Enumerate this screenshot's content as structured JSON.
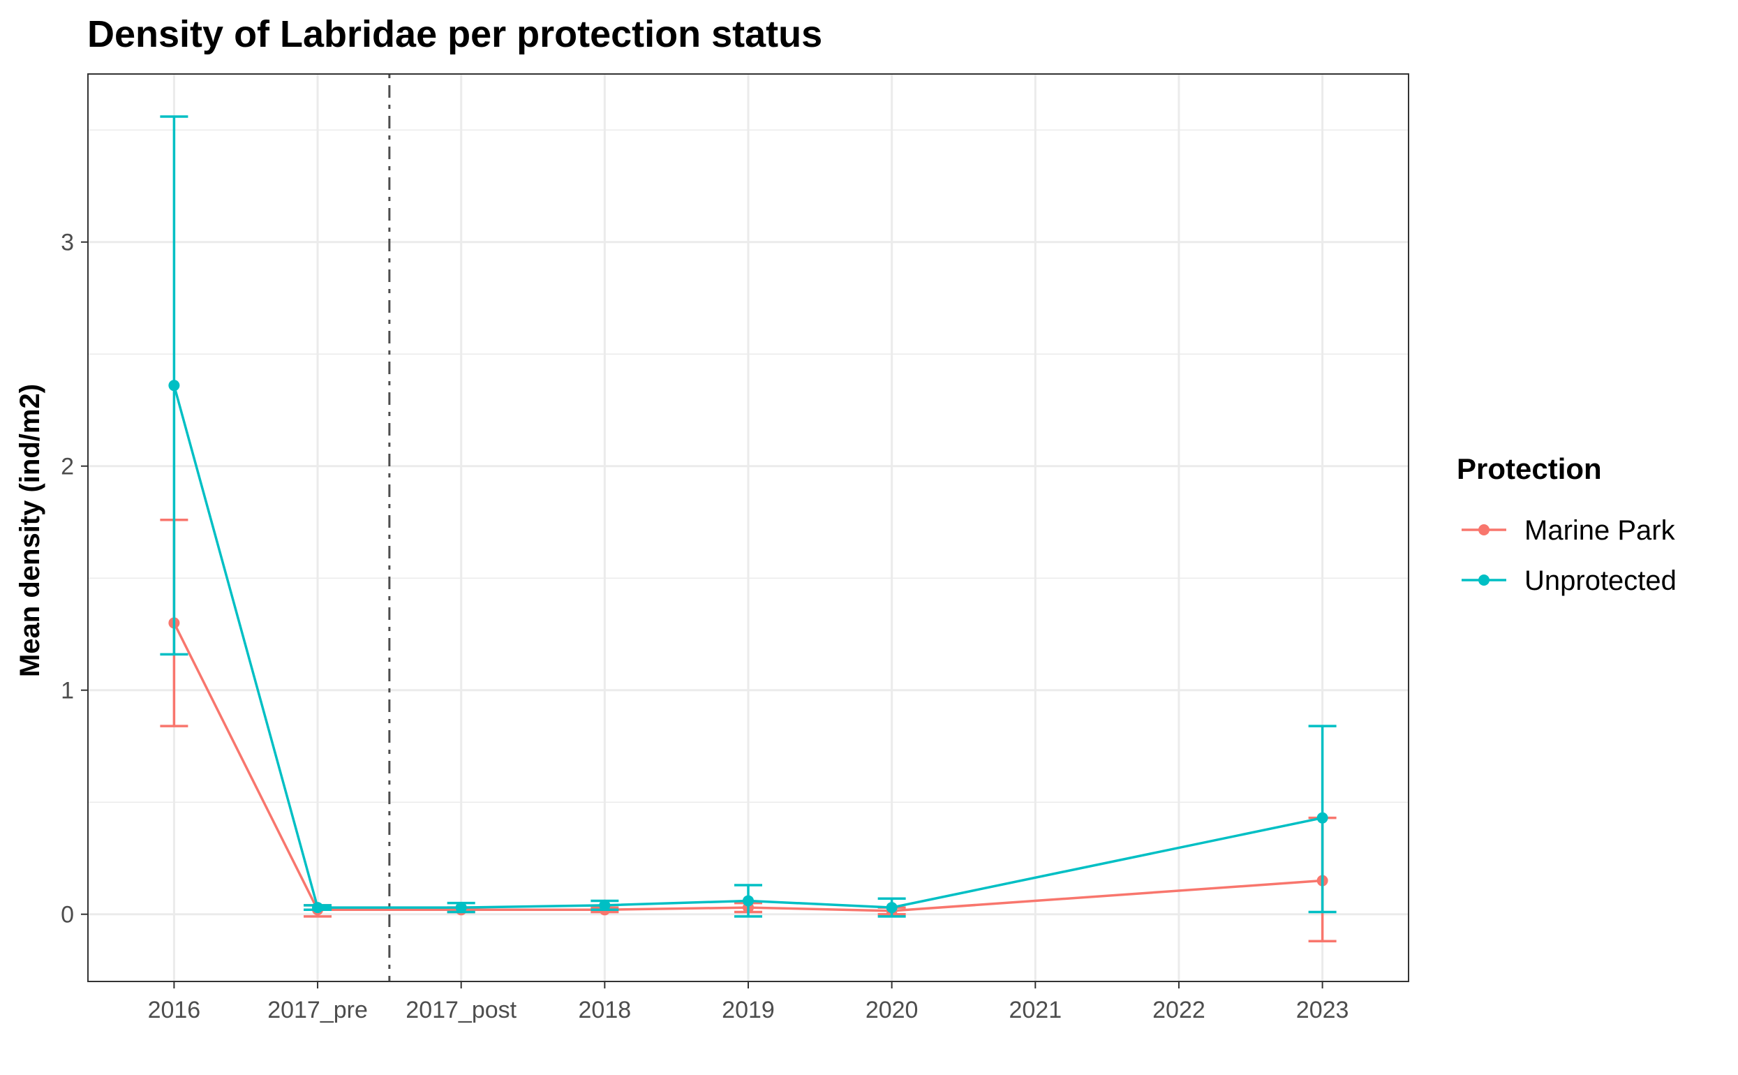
{
  "chart_data": {
    "type": "line",
    "title": "Density of Labridae per protection status",
    "xlabel": "",
    "ylabel": "Mean density (ind/m2)",
    "categories": [
      "2016",
      "2017_pre",
      "2017_post",
      "2018",
      "2019",
      "2020",
      "2021",
      "2022",
      "2023"
    ],
    "ylim": [
      -0.3,
      3.75
    ],
    "yticks": [
      0,
      1,
      2,
      3
    ],
    "grid": true,
    "vline": {
      "between": [
        "2017_pre",
        "2017_post"
      ],
      "style": "dashdot",
      "color": "#4d4d4d"
    },
    "legend": {
      "title": "Protection",
      "position": "right"
    },
    "series": [
      {
        "name": "Marine Park",
        "color": "#F8766D",
        "points": [
          {
            "x": "2016",
            "y": 1.3,
            "ymin": 0.84,
            "ymax": 1.76
          },
          {
            "x": "2017_pre",
            "y": 0.02,
            "ymin": -0.01,
            "ymax": 0.04
          },
          {
            "x": "2017_post",
            "y": 0.02,
            "ymin": 0.01,
            "ymax": 0.03
          },
          {
            "x": "2018",
            "y": 0.02,
            "ymin": 0.01,
            "ymax": 0.03
          },
          {
            "x": "2019",
            "y": 0.03,
            "ymin": 0.01,
            "ymax": 0.05
          },
          {
            "x": "2020",
            "y": 0.015,
            "ymin": 0.0,
            "ymax": 0.03
          },
          {
            "x": "2023",
            "y": 0.15,
            "ymin": -0.12,
            "ymax": 0.43
          }
        ]
      },
      {
        "name": "Unprotected",
        "color": "#00BFC4",
        "points": [
          {
            "x": "2016",
            "y": 2.36,
            "ymin": 1.16,
            "ymax": 3.56
          },
          {
            "x": "2017_pre",
            "y": 0.03,
            "ymin": 0.02,
            "ymax": 0.04
          },
          {
            "x": "2017_post",
            "y": 0.03,
            "ymin": 0.01,
            "ymax": 0.05
          },
          {
            "x": "2018",
            "y": 0.04,
            "ymin": 0.02,
            "ymax": 0.06
          },
          {
            "x": "2019",
            "y": 0.06,
            "ymin": -0.01,
            "ymax": 0.13
          },
          {
            "x": "2020",
            "y": 0.03,
            "ymin": -0.01,
            "ymax": 0.07
          },
          {
            "x": "2023",
            "y": 0.43,
            "ymin": 0.01,
            "ymax": 0.84
          }
        ]
      }
    ]
  }
}
